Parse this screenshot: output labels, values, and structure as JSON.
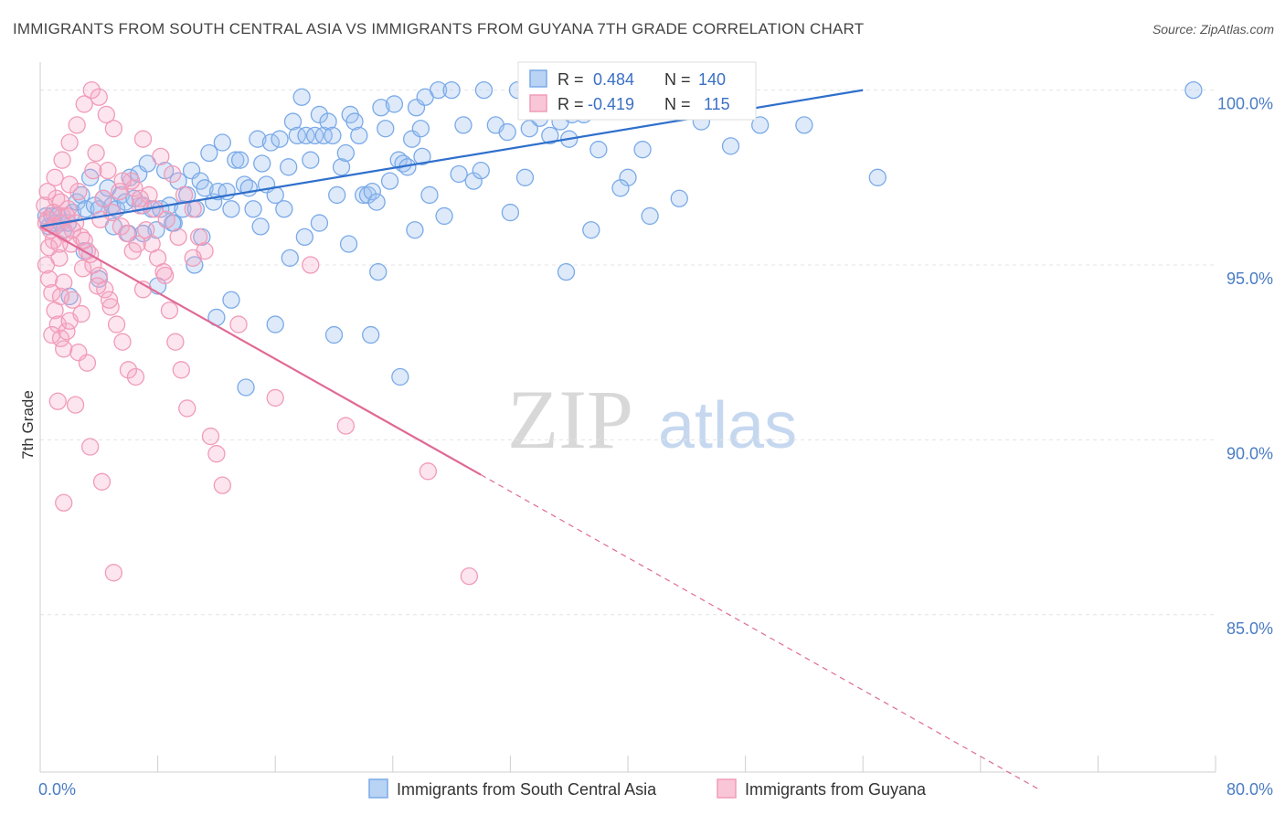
{
  "title": "IMMIGRANTS FROM SOUTH CENTRAL ASIA VS IMMIGRANTS FROM GUYANA 7TH GRADE CORRELATION CHART",
  "source": "Source: ZipAtlas.com",
  "watermark": {
    "zip": "ZIP",
    "atlas": "atlas"
  },
  "colors": {
    "blue": "#7aaae8",
    "blue_line": "#2f6fcc",
    "pink": "#f19bb8",
    "pink_line": "#e06a95",
    "tick_text": "#4a7cc4"
  },
  "stats": [
    {
      "r_label": "R =",
      "r_value": "0.484",
      "n_label": "N =",
      "n_value": "140"
    },
    {
      "r_label": "R =",
      "r_value": "-0.419",
      "n_label": "N =",
      "n_value": "115"
    }
  ],
  "chart_data": {
    "type": "scatter",
    "title": "IMMIGRANTS FROM SOUTH CENTRAL ASIA VS IMMIGRANTS FROM GUYANA 7TH GRADE CORRELATION CHART",
    "xlabel": "",
    "ylabel": "7th Grade",
    "xlim": [
      0,
      80
    ],
    "ylim": [
      80.5,
      100.8
    ],
    "x_tick_labels": [
      "0.0%",
      "80.0%"
    ],
    "y_ticks": [
      85,
      90,
      95,
      100
    ],
    "y_tick_labels": [
      "85.0%",
      "90.0%",
      "95.0%",
      "100.0%"
    ],
    "grid": true,
    "legend_position": "bottom",
    "series": [
      {
        "name": "Immigrants from South Central Asia",
        "color": "#7aaae8",
        "r": 0.484,
        "n": 140,
        "trend": {
          "x": [
            0,
            56
          ],
          "y": [
            96.1,
            100.0
          ],
          "style": "solid"
        },
        "points": [
          [
            0.4,
            96.4
          ],
          [
            0.6,
            96.1
          ],
          [
            0.8,
            96.4
          ],
          [
            1.0,
            96.2
          ],
          [
            1.2,
            96.4
          ],
          [
            1.4,
            96.2
          ],
          [
            1.6,
            96.0
          ],
          [
            1.9,
            96.2
          ],
          [
            2.2,
            96.5
          ],
          [
            2.5,
            96.8
          ],
          [
            2.8,
            97.0
          ],
          [
            3.1,
            96.6
          ],
          [
            3.4,
            97.5
          ],
          [
            3.7,
            96.7
          ],
          [
            4.0,
            96.6
          ],
          [
            4.3,
            96.9
          ],
          [
            4.6,
            97.2
          ],
          [
            4.9,
            96.7
          ],
          [
            5.2,
            96.6
          ],
          [
            5.5,
            97.0
          ],
          [
            5.8,
            96.8
          ],
          [
            6.1,
            97.5
          ],
          [
            6.4,
            96.9
          ],
          [
            6.7,
            97.6
          ],
          [
            7.0,
            96.7
          ],
          [
            7.3,
            97.9
          ],
          [
            7.6,
            96.6
          ],
          [
            7.9,
            96.0
          ],
          [
            8.2,
            96.6
          ],
          [
            8.5,
            97.7
          ],
          [
            8.8,
            96.7
          ],
          [
            9.1,
            96.2
          ],
          [
            9.4,
            97.4
          ],
          [
            9.7,
            96.6
          ],
          [
            10.0,
            97.0
          ],
          [
            10.3,
            97.7
          ],
          [
            10.6,
            96.6
          ],
          [
            10.9,
            97.4
          ],
          [
            11.2,
            97.2
          ],
          [
            11.5,
            98.2
          ],
          [
            11.8,
            96.8
          ],
          [
            12.1,
            97.1
          ],
          [
            12.4,
            98.5
          ],
          [
            12.7,
            97.1
          ],
          [
            13.0,
            96.6
          ],
          [
            13.3,
            98.0
          ],
          [
            13.6,
            98.0
          ],
          [
            13.9,
            97.3
          ],
          [
            14.2,
            97.2
          ],
          [
            14.5,
            96.6
          ],
          [
            14.8,
            98.6
          ],
          [
            15.1,
            97.9
          ],
          [
            15.4,
            97.3
          ],
          [
            15.7,
            98.5
          ],
          [
            16.0,
            97.0
          ],
          [
            16.3,
            98.6
          ],
          [
            16.6,
            96.6
          ],
          [
            16.9,
            97.8
          ],
          [
            17.2,
            99.1
          ],
          [
            17.5,
            98.7
          ],
          [
            17.8,
            99.8
          ],
          [
            18.1,
            98.7
          ],
          [
            18.4,
            98.0
          ],
          [
            18.7,
            98.7
          ],
          [
            19.0,
            99.3
          ],
          [
            19.3,
            98.7
          ],
          [
            19.6,
            99.1
          ],
          [
            19.9,
            98.7
          ],
          [
            20.2,
            97.0
          ],
          [
            20.5,
            97.8
          ],
          [
            20.8,
            98.2
          ],
          [
            21.1,
            99.3
          ],
          [
            21.4,
            99.1
          ],
          [
            21.7,
            98.7
          ],
          [
            22.0,
            97.0
          ],
          [
            22.3,
            97.0
          ],
          [
            22.6,
            97.1
          ],
          [
            22.9,
            96.8
          ],
          [
            23.2,
            99.5
          ],
          [
            23.5,
            98.9
          ],
          [
            23.8,
            97.4
          ],
          [
            24.1,
            99.6
          ],
          [
            24.4,
            98.0
          ],
          [
            24.7,
            97.9
          ],
          [
            25.0,
            97.8
          ],
          [
            25.3,
            98.6
          ],
          [
            25.6,
            99.5
          ],
          [
            25.9,
            98.9
          ],
          [
            26.2,
            99.8
          ],
          [
            26.5,
            97.0
          ],
          [
            27.1,
            100.0
          ],
          [
            28.0,
            100.0
          ],
          [
            28.8,
            99.0
          ],
          [
            29.5,
            97.4
          ],
          [
            30.2,
            100.0
          ],
          [
            31.0,
            99.0
          ],
          [
            31.8,
            98.8
          ],
          [
            32.5,
            100.0
          ],
          [
            33.3,
            98.9
          ],
          [
            34.0,
            99.2
          ],
          [
            34.7,
            98.7
          ],
          [
            35.4,
            99.1
          ],
          [
            36.2,
            99.3
          ],
          [
            37.0,
            99.3
          ],
          [
            38.0,
            98.3
          ],
          [
            39.0,
            99.4
          ],
          [
            40.0,
            97.5
          ],
          [
            41.0,
            98.3
          ],
          [
            37.5,
            96.0
          ],
          [
            35.8,
            94.8
          ],
          [
            32.0,
            96.5
          ],
          [
            28.5,
            97.6
          ],
          [
            25.5,
            96.0
          ],
          [
            23.0,
            94.8
          ],
          [
            20.0,
            93.0
          ],
          [
            18.0,
            95.8
          ],
          [
            16.0,
            93.3
          ],
          [
            14.0,
            91.5
          ],
          [
            12.0,
            93.5
          ],
          [
            10.5,
            95.0
          ],
          [
            8.0,
            94.4
          ],
          [
            6.0,
            95.9
          ],
          [
            4.0,
            94.6
          ],
          [
            2.0,
            94.1
          ],
          [
            3.0,
            95.4
          ],
          [
            5.0,
            96.1
          ],
          [
            7.0,
            95.9
          ],
          [
            9.0,
            96.2
          ],
          [
            11.0,
            95.8
          ],
          [
            13.0,
            94.0
          ],
          [
            15.0,
            96.1
          ],
          [
            17.0,
            95.2
          ],
          [
            19.0,
            96.2
          ],
          [
            21.0,
            95.6
          ],
          [
            22.5,
            93.0
          ],
          [
            24.5,
            91.8
          ],
          [
            26.0,
            98.1
          ],
          [
            27.5,
            96.4
          ],
          [
            30.0,
            97.7
          ],
          [
            33.0,
            97.5
          ],
          [
            36.0,
            98.6
          ],
          [
            39.5,
            97.2
          ],
          [
            41.5,
            96.4
          ],
          [
            43.5,
            96.9
          ],
          [
            45.0,
            99.1
          ],
          [
            47.0,
            98.4
          ],
          [
            49.0,
            99.0
          ],
          [
            52.0,
            99.0
          ],
          [
            57.0,
            97.5
          ],
          [
            78.5,
            100.0
          ]
        ]
      },
      {
        "name": "Immigrants from Guyana",
        "color": "#f19bb8",
        "r": -0.419,
        "n": 115,
        "trend": {
          "x": [
            0,
            30
          ],
          "y": [
            96.1,
            89.0
          ],
          "style": "solid"
        },
        "trend_extension": {
          "x": [
            30,
            68
          ],
          "y": [
            89.0,
            80.0
          ],
          "style": "dashed"
        },
        "points": [
          [
            0.3,
            96.7
          ],
          [
            0.5,
            96.3
          ],
          [
            0.7,
            96.0
          ],
          [
            0.9,
            95.7
          ],
          [
            1.1,
            96.9
          ],
          [
            1.3,
            95.2
          ],
          [
            1.5,
            96.4
          ],
          [
            1.7,
            95.9
          ],
          [
            1.9,
            96.6
          ],
          [
            2.1,
            95.6
          ],
          [
            0.4,
            95.0
          ],
          [
            0.6,
            94.6
          ],
          [
            0.8,
            94.2
          ],
          [
            1.0,
            93.7
          ],
          [
            1.2,
            93.3
          ],
          [
            1.4,
            92.9
          ],
          [
            1.6,
            92.6
          ],
          [
            1.8,
            93.1
          ],
          [
            2.0,
            93.4
          ],
          [
            2.2,
            94.0
          ],
          [
            0.5,
            97.1
          ],
          [
            1.0,
            97.5
          ],
          [
            1.5,
            98.0
          ],
          [
            2.0,
            98.5
          ],
          [
            2.5,
            99.0
          ],
          [
            3.0,
            99.6
          ],
          [
            3.5,
            100.0
          ],
          [
            4.0,
            99.8
          ],
          [
            4.5,
            99.3
          ],
          [
            5.0,
            98.9
          ],
          [
            2.4,
            96.2
          ],
          [
            2.8,
            95.8
          ],
          [
            3.2,
            95.4
          ],
          [
            3.6,
            95.0
          ],
          [
            4.0,
            94.7
          ],
          [
            4.4,
            94.3
          ],
          [
            4.8,
            93.8
          ],
          [
            5.2,
            93.3
          ],
          [
            5.6,
            92.8
          ],
          [
            6.0,
            92.0
          ],
          [
            6.4,
            97.2
          ],
          [
            6.8,
            96.7
          ],
          [
            7.2,
            96.0
          ],
          [
            7.6,
            95.6
          ],
          [
            8.0,
            95.2
          ],
          [
            8.4,
            94.8
          ],
          [
            8.8,
            93.7
          ],
          [
            9.2,
            92.8
          ],
          [
            9.6,
            92.0
          ],
          [
            10.0,
            90.9
          ],
          [
            10.4,
            96.6
          ],
          [
            10.8,
            95.8
          ],
          [
            11.2,
            95.4
          ],
          [
            11.6,
            90.1
          ],
          [
            12.0,
            89.6
          ],
          [
            12.4,
            88.7
          ],
          [
            1.2,
            91.1
          ],
          [
            1.6,
            88.2
          ],
          [
            2.4,
            91.0
          ],
          [
            3.4,
            89.8
          ],
          [
            4.2,
            88.8
          ],
          [
            5.0,
            86.2
          ],
          [
            6.3,
            95.4
          ],
          [
            7.0,
            94.3
          ],
          [
            8.2,
            98.1
          ],
          [
            9.0,
            97.6
          ],
          [
            9.8,
            97.0
          ],
          [
            4.3,
            96.9
          ],
          [
            4.9,
            96.5
          ],
          [
            5.5,
            96.1
          ],
          [
            5.9,
            95.9
          ],
          [
            6.6,
            95.6
          ],
          [
            3.8,
            98.2
          ],
          [
            4.6,
            97.7
          ],
          [
            6.2,
            97.4
          ],
          [
            7.4,
            97.0
          ],
          [
            7.8,
            96.6
          ],
          [
            8.6,
            96.3
          ],
          [
            9.4,
            95.8
          ],
          [
            2.6,
            97.1
          ],
          [
            1.8,
            96.4
          ],
          [
            2.2,
            96.0
          ],
          [
            3.0,
            95.7
          ],
          [
            3.4,
            95.3
          ],
          [
            2.9,
            94.9
          ],
          [
            3.9,
            94.4
          ],
          [
            4.7,
            94.0
          ],
          [
            1.4,
            94.1
          ],
          [
            2.6,
            92.5
          ],
          [
            3.2,
            92.2
          ],
          [
            0.8,
            93.0
          ],
          [
            1.6,
            94.5
          ],
          [
            2.8,
            93.6
          ],
          [
            5.4,
            97.1
          ],
          [
            7.0,
            98.6
          ],
          [
            6.5,
            91.8
          ],
          [
            8.5,
            94.7
          ],
          [
            10.4,
            95.2
          ],
          [
            13.5,
            93.3
          ],
          [
            16.0,
            91.2
          ],
          [
            18.4,
            95.0
          ],
          [
            20.8,
            90.4
          ],
          [
            26.4,
            89.1
          ],
          [
            29.2,
            86.1
          ],
          [
            0.6,
            95.5
          ],
          [
            1.0,
            96.1
          ],
          [
            1.4,
            96.8
          ],
          [
            0.4,
            96.2
          ],
          [
            0.9,
            96.5
          ],
          [
            1.3,
            95.6
          ],
          [
            2.0,
            97.3
          ],
          [
            3.6,
            97.7
          ],
          [
            4.1,
            96.3
          ],
          [
            5.6,
            97.4
          ],
          [
            6.8,
            96.9
          ]
        ]
      }
    ]
  },
  "legend": [
    {
      "label": "Immigrants from South Central Asia",
      "color": "#7aaae8"
    },
    {
      "label": "Immigrants from Guyana",
      "color": "#f19bb8"
    }
  ]
}
